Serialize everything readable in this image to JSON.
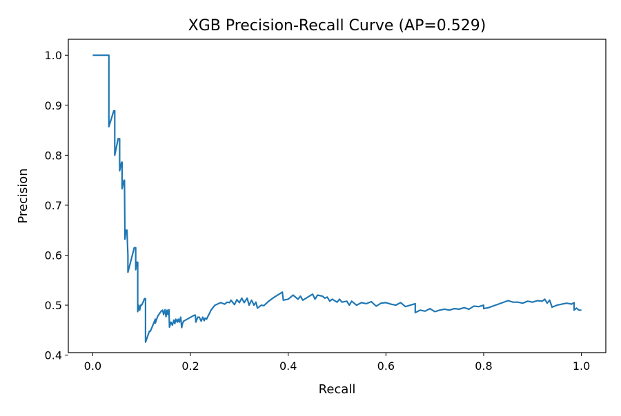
{
  "chart_data": {
    "type": "line",
    "title": "XGB Precision-Recall Curve (AP=0.529)",
    "xlabel": "Recall",
    "ylabel": "Precision",
    "xlim": [
      -0.05,
      1.05
    ],
    "ylim": [
      0.405,
      1.032
    ],
    "xticks": [
      0.0,
      0.2,
      0.4,
      0.6,
      0.8,
      1.0
    ],
    "xtick_labels": [
      "0.0",
      "0.2",
      "0.4",
      "0.6",
      "0.8",
      "1.0"
    ],
    "yticks": [
      0.4,
      0.5,
      0.6,
      0.7,
      0.8,
      0.9,
      1.0
    ],
    "ytick_labels": [
      "0.4",
      "0.5",
      "0.6",
      "0.7",
      "0.8",
      "0.9",
      "1.0"
    ],
    "grid": false,
    "series": [
      {
        "color": "#1f77b4",
        "x": [
          0.0,
          0.033,
          0.033,
          0.043,
          0.045,
          0.045,
          0.052,
          0.055,
          0.055,
          0.059,
          0.06,
          0.06,
          0.064,
          0.065,
          0.066,
          0.068,
          0.07,
          0.072,
          0.072,
          0.085,
          0.088,
          0.088,
          0.09,
          0.092,
          0.092,
          0.094,
          0.096,
          0.098,
          0.1,
          0.103,
          0.106,
          0.108,
          0.108,
          0.116,
          0.118,
          0.128,
          0.128,
          0.133,
          0.14,
          0.143,
          0.145,
          0.148,
          0.15,
          0.152,
          0.154,
          0.156,
          0.157,
          0.16,
          0.163,
          0.166,
          0.168,
          0.17,
          0.173,
          0.175,
          0.177,
          0.18,
          0.182,
          0.184,
          0.186,
          0.208,
          0.21,
          0.211,
          0.215,
          0.218,
          0.222,
          0.225,
          0.228,
          0.23,
          0.233,
          0.236,
          0.239,
          0.242,
          0.25,
          0.262,
          0.27,
          0.275,
          0.28,
          0.283,
          0.29,
          0.295,
          0.3,
          0.305,
          0.31,
          0.316,
          0.32,
          0.325,
          0.33,
          0.334,
          0.337,
          0.345,
          0.35,
          0.36,
          0.37,
          0.388,
          0.39,
          0.4,
          0.41,
          0.42,
          0.425,
          0.43,
          0.44,
          0.45,
          0.455,
          0.46,
          0.47,
          0.475,
          0.48,
          0.485,
          0.49,
          0.5,
          0.505,
          0.51,
          0.52,
          0.525,
          0.53,
          0.54,
          0.55,
          0.56,
          0.57,
          0.58,
          0.59,
          0.6,
          0.61,
          0.62,
          0.63,
          0.64,
          0.65,
          0.66,
          0.66,
          0.67,
          0.68,
          0.69,
          0.7,
          0.71,
          0.72,
          0.73,
          0.74,
          0.75,
          0.76,
          0.77,
          0.78,
          0.79,
          0.8,
          0.8,
          0.81,
          0.83,
          0.85,
          0.86,
          0.87,
          0.88,
          0.89,
          0.9,
          0.91,
          0.92,
          0.925,
          0.93,
          0.935,
          0.94,
          0.95,
          0.96,
          0.97,
          0.98,
          0.985,
          0.985,
          0.99,
          0.995,
          1.0
        ],
        "y": [
          1.0,
          1.0,
          0.857,
          0.889,
          0.889,
          0.8,
          0.833,
          0.833,
          0.769,
          0.786,
          0.786,
          0.733,
          0.75,
          0.75,
          0.632,
          0.65,
          0.65,
          0.6,
          0.566,
          0.615,
          0.615,
          0.571,
          0.586,
          0.586,
          0.487,
          0.5,
          0.49,
          0.5,
          0.5,
          0.506,
          0.513,
          0.513,
          0.426,
          0.448,
          0.448,
          0.472,
          0.464,
          0.478,
          0.488,
          0.49,
          0.481,
          0.491,
          0.477,
          0.49,
          0.481,
          0.491,
          0.456,
          0.466,
          0.46,
          0.47,
          0.463,
          0.472,
          0.466,
          0.472,
          0.466,
          0.476,
          0.455,
          0.464,
          0.468,
          0.48,
          0.48,
          0.466,
          0.476,
          0.476,
          0.468,
          0.476,
          0.469,
          0.474,
          0.472,
          0.478,
          0.484,
          0.49,
          0.5,
          0.505,
          0.502,
          0.506,
          0.505,
          0.51,
          0.501,
          0.511,
          0.505,
          0.514,
          0.505,
          0.514,
          0.5,
          0.51,
          0.5,
          0.506,
          0.494,
          0.5,
          0.499,
          0.508,
          0.515,
          0.526,
          0.51,
          0.512,
          0.52,
          0.512,
          0.518,
          0.51,
          0.516,
          0.522,
          0.512,
          0.52,
          0.518,
          0.514,
          0.516,
          0.508,
          0.512,
          0.506,
          0.512,
          0.506,
          0.508,
          0.5,
          0.508,
          0.5,
          0.505,
          0.503,
          0.507,
          0.498,
          0.504,
          0.505,
          0.502,
          0.5,
          0.505,
          0.497,
          0.5,
          0.503,
          0.485,
          0.49,
          0.488,
          0.493,
          0.487,
          0.49,
          0.492,
          0.49,
          0.493,
          0.492,
          0.495,
          0.492,
          0.498,
          0.497,
          0.5,
          0.493,
          0.495,
          0.502,
          0.509,
          0.506,
          0.506,
          0.504,
          0.508,
          0.506,
          0.509,
          0.508,
          0.512,
          0.504,
          0.51,
          0.496,
          0.5,
          0.502,
          0.504,
          0.502,
          0.505,
          0.49,
          0.494,
          0.49,
          0.49
        ]
      }
    ]
  }
}
